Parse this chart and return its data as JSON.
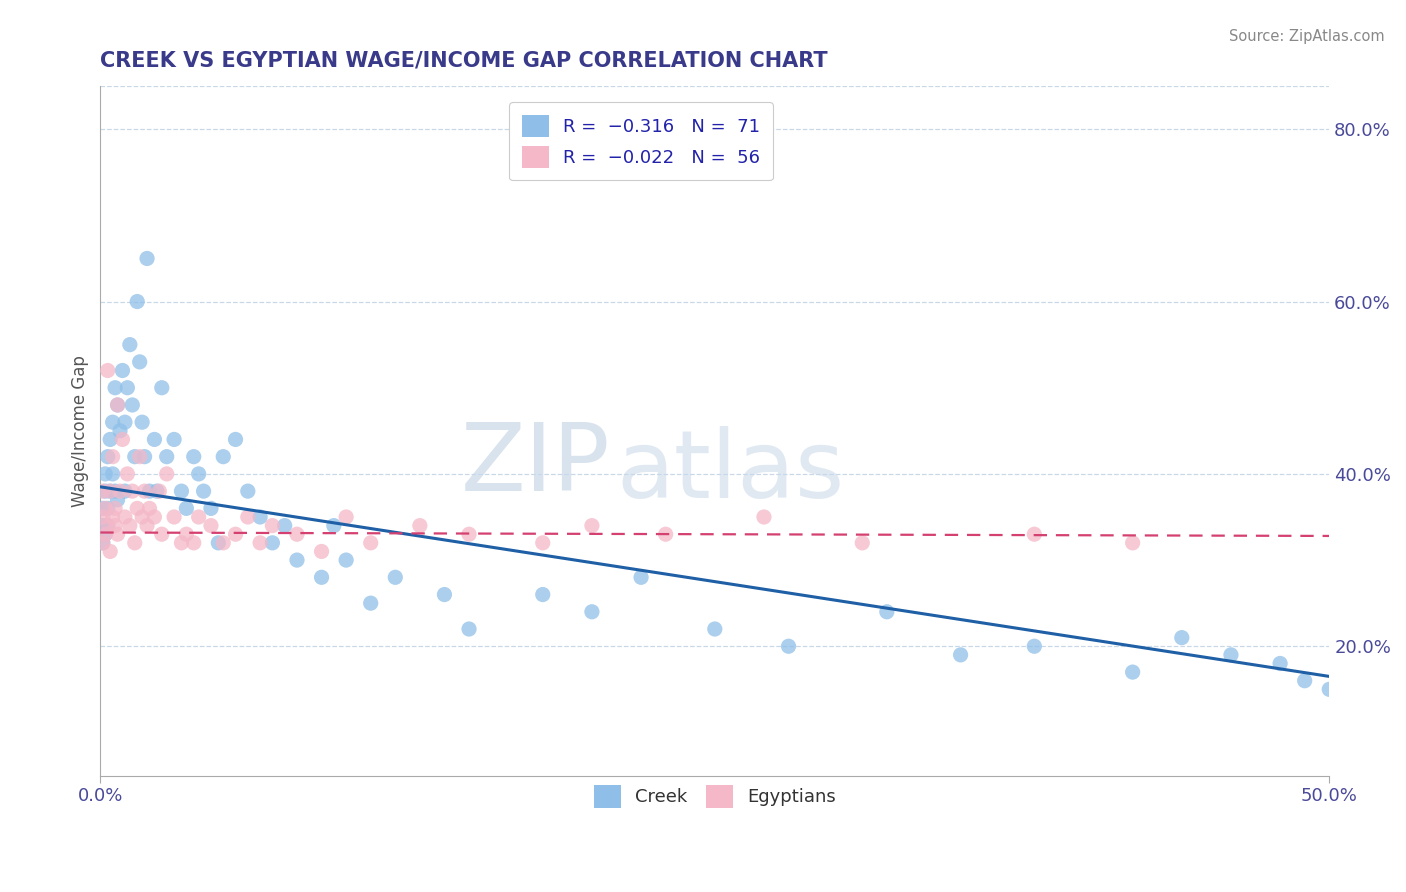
{
  "title": "CREEK VS EGYPTIAN WAGE/INCOME GAP CORRELATION CHART",
  "source_text": "Source: ZipAtlas.com",
  "ylabel": "Wage/Income Gap",
  "xlim": [
    0.0,
    0.5
  ],
  "ylim": [
    0.05,
    0.85
  ],
  "xticks": [
    0.0,
    0.5
  ],
  "xticklabels": [
    "0.0%",
    "50.0%"
  ],
  "yticks_right": [
    0.2,
    0.4,
    0.6,
    0.8
  ],
  "ytick_right_labels": [
    "20.0%",
    "40.0%",
    "60.0%",
    "80.0%"
  ],
  "creek_color": "#8fbfe8",
  "creek_color_dark": "#1f5fa6",
  "egyptian_color": "#f4b8c8",
  "egyptian_color_dark": "#d44070",
  "watermark_zip": "ZIP",
  "watermark_atlas": "atlas",
  "background_color": "#ffffff",
  "grid_color": "#c8d8e8",
  "creek_line_x": [
    0.0,
    0.5
  ],
  "creek_line_y": [
    0.385,
    0.165
  ],
  "egyptian_line_x": [
    0.0,
    0.5
  ],
  "egyptian_line_y": [
    0.332,
    0.328
  ],
  "creek_scatter_x": [
    0.001,
    0.001,
    0.001,
    0.002,
    0.002,
    0.002,
    0.003,
    0.003,
    0.003,
    0.004,
    0.004,
    0.005,
    0.005,
    0.006,
    0.006,
    0.007,
    0.007,
    0.008,
    0.009,
    0.01,
    0.01,
    0.011,
    0.012,
    0.013,
    0.014,
    0.015,
    0.016,
    0.017,
    0.018,
    0.019,
    0.02,
    0.022,
    0.023,
    0.025,
    0.027,
    0.03,
    0.033,
    0.035,
    0.038,
    0.04,
    0.042,
    0.045,
    0.048,
    0.05,
    0.055,
    0.06,
    0.065,
    0.07,
    0.075,
    0.08,
    0.09,
    0.095,
    0.1,
    0.11,
    0.12,
    0.14,
    0.15,
    0.18,
    0.2,
    0.22,
    0.25,
    0.28,
    0.32,
    0.35,
    0.38,
    0.42,
    0.44,
    0.46,
    0.48,
    0.49,
    0.5
  ],
  "creek_scatter_y": [
    0.32,
    0.34,
    0.36,
    0.33,
    0.38,
    0.4,
    0.36,
    0.42,
    0.34,
    0.38,
    0.44,
    0.4,
    0.46,
    0.38,
    0.5,
    0.37,
    0.48,
    0.45,
    0.52,
    0.38,
    0.46,
    0.5,
    0.55,
    0.48,
    0.42,
    0.6,
    0.53,
    0.46,
    0.42,
    0.65,
    0.38,
    0.44,
    0.38,
    0.5,
    0.42,
    0.44,
    0.38,
    0.36,
    0.42,
    0.4,
    0.38,
    0.36,
    0.32,
    0.42,
    0.44,
    0.38,
    0.35,
    0.32,
    0.34,
    0.3,
    0.28,
    0.34,
    0.3,
    0.25,
    0.28,
    0.26,
    0.22,
    0.26,
    0.24,
    0.28,
    0.22,
    0.2,
    0.24,
    0.19,
    0.2,
    0.17,
    0.21,
    0.19,
    0.18,
    0.16,
    0.15
  ],
  "egyptian_scatter_x": [
    0.001,
    0.001,
    0.001,
    0.002,
    0.002,
    0.003,
    0.003,
    0.004,
    0.004,
    0.005,
    0.005,
    0.006,
    0.006,
    0.007,
    0.007,
    0.008,
    0.009,
    0.01,
    0.011,
    0.012,
    0.013,
    0.014,
    0.015,
    0.016,
    0.017,
    0.018,
    0.019,
    0.02,
    0.022,
    0.024,
    0.025,
    0.027,
    0.03,
    0.033,
    0.035,
    0.038,
    0.04,
    0.045,
    0.05,
    0.055,
    0.06,
    0.065,
    0.07,
    0.08,
    0.09,
    0.1,
    0.11,
    0.13,
    0.15,
    0.18,
    0.2,
    0.23,
    0.27,
    0.31,
    0.38,
    0.42
  ],
  "egyptian_scatter_y": [
    0.32,
    0.35,
    0.38,
    0.33,
    0.36,
    0.34,
    0.52,
    0.31,
    0.38,
    0.35,
    0.42,
    0.34,
    0.36,
    0.48,
    0.33,
    0.38,
    0.44,
    0.35,
    0.4,
    0.34,
    0.38,
    0.32,
    0.36,
    0.42,
    0.35,
    0.38,
    0.34,
    0.36,
    0.35,
    0.38,
    0.33,
    0.4,
    0.35,
    0.32,
    0.33,
    0.32,
    0.35,
    0.34,
    0.32,
    0.33,
    0.35,
    0.32,
    0.34,
    0.33,
    0.31,
    0.35,
    0.32,
    0.34,
    0.33,
    0.32,
    0.34,
    0.33,
    0.35,
    0.32,
    0.33,
    0.32
  ]
}
